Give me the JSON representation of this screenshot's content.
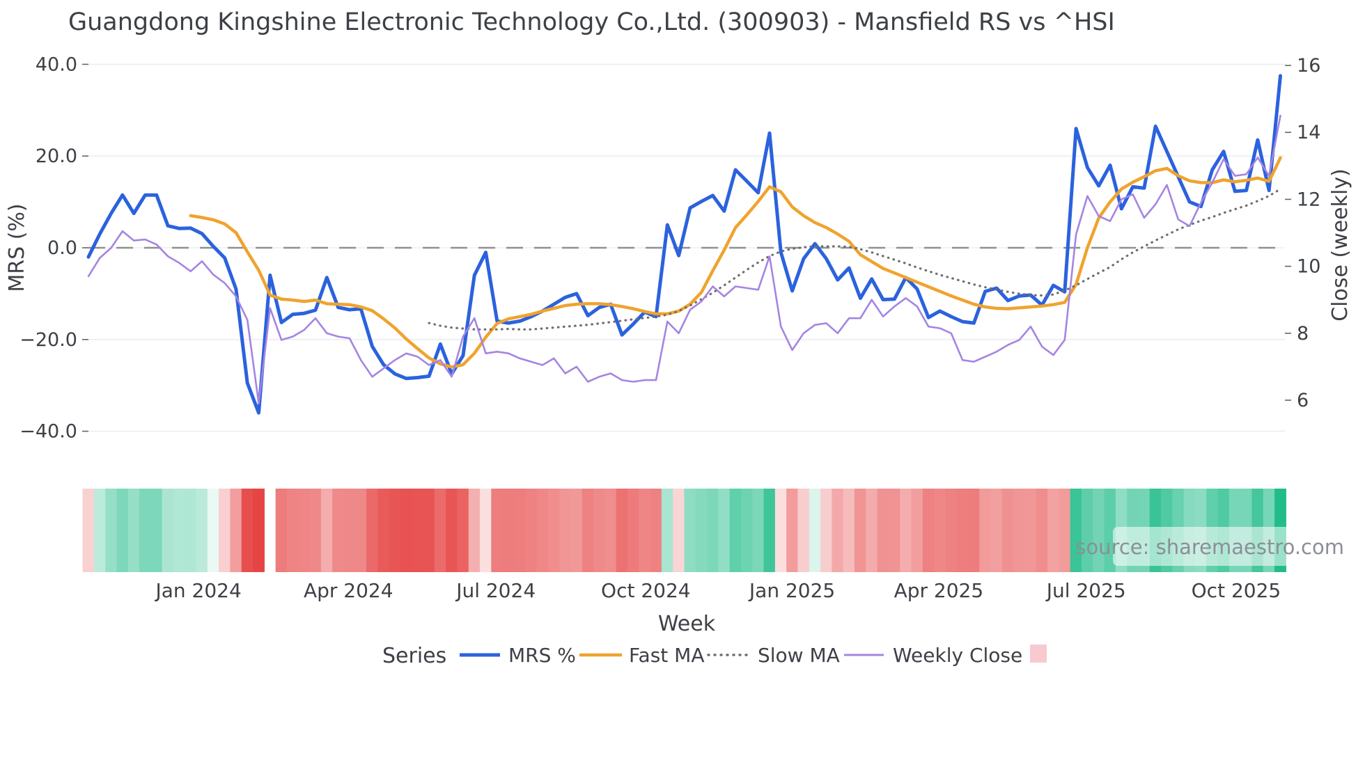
{
  "title": "Guangdong Kingshine Electronic Technology Co.,Ltd. (300903) - Mansfield RS vs ^HSI",
  "source_note": "source: sharemaestro.com",
  "axes": {
    "left_label": "MRS (%)",
    "right_label": "Close (weekly)",
    "x_label": "Week",
    "left_ticks": [
      {
        "label": "40.0",
        "value": 40
      },
      {
        "label": "20.0",
        "value": 20
      },
      {
        "label": "0.0",
        "value": 0
      },
      {
        "label": "−20.0",
        "value": -20
      },
      {
        "label": "−40.0",
        "value": -40
      }
    ],
    "right_ticks": [
      {
        "label": "16",
        "value": 16
      },
      {
        "label": "14",
        "value": 14
      },
      {
        "label": "12",
        "value": 12
      },
      {
        "label": "10",
        "value": 10
      },
      {
        "label": "8",
        "value": 8
      },
      {
        "label": "6",
        "value": 6
      }
    ],
    "x_ticks": [
      {
        "label": "Jan 2024",
        "week": 9.7
      },
      {
        "label": "Apr 2024",
        "week": 22.9
      },
      {
        "label": "Jul 2024",
        "week": 35.9
      },
      {
        "label": "Oct 2024",
        "week": 49.1
      },
      {
        "label": "Jan 2025",
        "week": 62.0
      },
      {
        "label": "Apr 2025",
        "week": 74.9
      },
      {
        "label": "Jul 2025",
        "week": 87.9
      },
      {
        "label": "Oct 2025",
        "week": 101.1
      }
    ]
  },
  "legend": {
    "heading": "Series",
    "items": [
      {
        "label": "MRS %",
        "swatch": "line-solid",
        "color_key": "mrs"
      },
      {
        "label": "Fast MA",
        "swatch": "line-solid",
        "color_key": "fast_ma"
      },
      {
        "label": "Slow MA",
        "swatch": "line-dotted",
        "color_key": "slow_ma"
      },
      {
        "label": "Weekly Close",
        "swatch": "line-solid",
        "color_key": "weekly_close"
      },
      {
        "label": "",
        "swatch": "patch",
        "color_key": "legend_patch"
      }
    ]
  },
  "colors": {
    "mrs": "#2b62dd",
    "fast_ma": "#efa32e",
    "slow_ma": "#6e6e6e",
    "weekly_close": "#a585e2",
    "zero_line": "#8f8f8f",
    "grid": "#ebedf3",
    "text": "#3d4046",
    "source_text": "#8b8f96",
    "heat_positive": "#22bc8a",
    "heat_negative": "#e64545",
    "legend_patch": "#f8c9ce"
  },
  "chart_data": {
    "type": "line",
    "x_unit": "week",
    "n_points": 106,
    "x_range_note": "weekly points, late Oct 2023 through Nov 2025",
    "ylim_left": [
      -40,
      40
    ],
    "ylim_right": [
      6,
      16
    ],
    "grid": "horizontal-left-ticks",
    "zero_reference_line": 0,
    "legend_position": "bottom-center",
    "series": [
      {
        "name": "MRS %",
        "axis": "left",
        "style": "solid",
        "width": 5,
        "color_key": "mrs",
        "values": [
          -2,
          3,
          7.5,
          11.5,
          7.5,
          11.5,
          11.5,
          4.8,
          4.2,
          4.3,
          3.1,
          0.3,
          -2.2,
          -9,
          -29.5,
          -36,
          -6,
          -16.3,
          -14.5,
          -14.3,
          -13.6,
          -6.5,
          -13,
          -13.5,
          -13.3,
          -21.5,
          -25.5,
          -27.5,
          -28.5,
          -28.3,
          -28,
          -21,
          -27.5,
          -23.5,
          -6,
          -1,
          -16,
          -16.4,
          -16,
          -15,
          -13.8,
          -12.3,
          -10.8,
          -10,
          -14.8,
          -13,
          -12.3,
          -19,
          -16.6,
          -14,
          -15,
          5,
          -1.7,
          8.7,
          10.1,
          11.4,
          8,
          17,
          14.5,
          12,
          25,
          -1,
          -9.4,
          -2.4,
          0.9,
          -2.4,
          -7,
          -4.4,
          -11,
          -6.8,
          -11.3,
          -11.2,
          -6.5,
          -9,
          -15.2,
          -13.8,
          -15,
          -16.1,
          -16.4,
          -9.5,
          -8.8,
          -11.5,
          -10.5,
          -10.3,
          -12.5,
          -8.2,
          -9.6,
          26,
          17.5,
          13.5,
          18,
          8.5,
          13.3,
          13,
          26.5,
          21,
          15.5,
          10,
          9,
          17,
          21,
          12.3,
          12.5,
          23.5,
          12.5,
          37.5
        ]
      },
      {
        "name": "Fast MA",
        "axis": "left",
        "style": "solid",
        "width": 4.5,
        "color_key": "fast_ma",
        "values": [
          null,
          null,
          null,
          null,
          null,
          null,
          null,
          null,
          null,
          7.0,
          6.6,
          6.1,
          5.2,
          3.3,
          -0.9,
          -4.9,
          -10.3,
          -11.2,
          -11.4,
          -11.7,
          -11.4,
          -12.2,
          -12.3,
          -12.4,
          -12.9,
          -13.7,
          -15.5,
          -17.5,
          -19.9,
          -22,
          -24,
          -25.3,
          -26,
          -25.5,
          -23,
          -19.5,
          -16.5,
          -15.5,
          -15,
          -14.5,
          -13.8,
          -13.2,
          -12.6,
          -12.3,
          -12.2,
          -12.2,
          -12.4,
          -12.8,
          -13.3,
          -13.9,
          -14.4,
          -14.4,
          -13.8,
          -12.3,
          -9.7,
          -5,
          -0.5,
          4.4,
          7.2,
          10.1,
          13.3,
          12.2,
          8.9,
          7,
          5.5,
          4.4,
          3,
          1.4,
          -1.5,
          -3,
          -4.5,
          -5.5,
          -6.5,
          -7.5,
          -8.5,
          -9.5,
          -10.5,
          -11.4,
          -12.3,
          -12.9,
          -13.2,
          -13.3,
          -13.1,
          -12.9,
          -12.7,
          -12.4,
          -11.9,
          -8,
          0,
          6.5,
          10,
          12.8,
          14.3,
          15.5,
          16.8,
          17.3,
          15.7,
          14.6,
          14.2,
          14.2,
          14.8,
          14.4,
          14.7,
          15.2,
          14.5,
          19.6
        ]
      },
      {
        "name": "Slow MA",
        "axis": "left",
        "style": "dotted",
        "width": 3.2,
        "color_key": "slow_ma",
        "values": [
          null,
          null,
          null,
          null,
          null,
          null,
          null,
          null,
          null,
          null,
          null,
          null,
          null,
          null,
          null,
          null,
          null,
          null,
          null,
          null,
          null,
          null,
          null,
          null,
          null,
          null,
          null,
          null,
          null,
          null,
          -16.4,
          -17,
          -17.4,
          -17.6,
          -17.8,
          -17.8,
          -17.8,
          -17.7,
          -17.8,
          -17.8,
          -17.6,
          -17.4,
          -17.2,
          -17,
          -16.8,
          -16.5,
          -16.2,
          -15.9,
          -15.6,
          -15.3,
          -15,
          -14.6,
          -13.8,
          -12.6,
          -11.2,
          -9.8,
          -8.2,
          -6.5,
          -4.8,
          -3.2,
          -1.8,
          -0.8,
          -0.2,
          0.1,
          0.3,
          0.3,
          0.3,
          0.2,
          -0.3,
          -1,
          -1.8,
          -2.6,
          -3.4,
          -4.3,
          -5.1,
          -5.9,
          -6.6,
          -7.3,
          -8,
          -8.6,
          -9.1,
          -9.6,
          -10,
          -10.3,
          -10.4,
          -10.2,
          -9.3,
          -8.2,
          -6.8,
          -5.5,
          -4.2,
          -2.5,
          -1,
          0.3,
          1.6,
          2.8,
          4,
          5,
          5.9,
          6.7,
          7.6,
          8.4,
          9.2,
          10.2,
          11.3,
          12.8
        ]
      },
      {
        "name": "Weekly Close",
        "axis": "right",
        "style": "solid",
        "width": 2.6,
        "color_key": "weekly_close",
        "values": [
          9.7,
          10.25,
          10.55,
          11.05,
          10.77,
          10.8,
          10.65,
          10.3,
          10.1,
          9.85,
          10.15,
          9.75,
          9.5,
          9.1,
          8.4,
          5.9,
          8.75,
          7.8,
          7.9,
          8.1,
          8.45,
          8.0,
          7.9,
          7.85,
          7.2,
          6.7,
          6.95,
          7.2,
          7.4,
          7.3,
          7.05,
          7.2,
          6.7,
          7.9,
          8.45,
          7.4,
          7.45,
          7.4,
          7.25,
          7.15,
          7.05,
          7.25,
          6.8,
          7.0,
          6.55,
          6.7,
          6.8,
          6.6,
          6.55,
          6.6,
          6.6,
          8.35,
          8.0,
          8.7,
          8.95,
          9.4,
          9.1,
          9.4,
          9.35,
          9.3,
          10.3,
          8.2,
          7.5,
          8.0,
          8.25,
          8.3,
          8.0,
          8.45,
          8.45,
          9.0,
          8.5,
          8.8,
          9.05,
          8.8,
          8.2,
          8.15,
          8.0,
          7.2,
          7.15,
          7.3,
          7.45,
          7.65,
          7.8,
          8.2,
          7.6,
          7.35,
          7.8,
          10.95,
          12.1,
          11.5,
          11.35,
          12.0,
          12.15,
          11.45,
          11.85,
          12.43,
          11.4,
          11.2,
          11.9,
          12.5,
          13.2,
          12.7,
          12.75,
          13.25,
          12.7,
          14.5
        ]
      }
    ],
    "heatmap_strip": {
      "derived_from": "MRS %",
      "rule": "cell color = white blended toward green for positive MRS, toward red for negative MRS, intensity = sqrt(|v|/33)",
      "gap_index": 16
    }
  }
}
